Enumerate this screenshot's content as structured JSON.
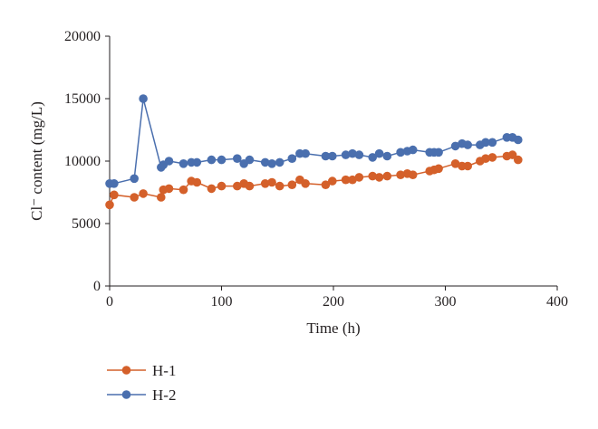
{
  "chart_data": {
    "type": "line",
    "title": "",
    "xlabel": "Time (h)",
    "ylabel": "Cl⁻ content (mg/L)",
    "xlim": [
      0,
      400
    ],
    "ylim": [
      0,
      20000
    ],
    "xticks": [
      "0",
      "100",
      "200",
      "300",
      "400"
    ],
    "yticks": [
      "0",
      "5000",
      "10000",
      "15000",
      "20000"
    ],
    "grid": false,
    "legend_position": "bottom-left",
    "series": [
      {
        "name": "H-1",
        "color": "#d4602a",
        "x": [
          0,
          4,
          22,
          30,
          46,
          48,
          53,
          66,
          73,
          78,
          91,
          100,
          114,
          120,
          125,
          139,
          145,
          152,
          163,
          170,
          175,
          193,
          199,
          211,
          217,
          223,
          235,
          241,
          248,
          260,
          266,
          271,
          286,
          290,
          294,
          309,
          315,
          320,
          331,
          336,
          342,
          355,
          360,
          365
        ],
        "y": [
          6500,
          7300,
          7100,
          7400,
          7100,
          7700,
          7800,
          7700,
          8400,
          8300,
          7800,
          8000,
          8000,
          8200,
          8000,
          8200,
          8300,
          8000,
          8100,
          8500,
          8200,
          8100,
          8400,
          8500,
          8500,
          8700,
          8800,
          8700,
          8800,
          8900,
          9000,
          8900,
          9200,
          9300,
          9400,
          9800,
          9600,
          9600,
          10000,
          10200,
          10300,
          10400,
          10500,
          10100
        ]
      },
      {
        "name": "H-2",
        "color": "#4a6fae",
        "x": [
          0,
          4,
          22,
          30,
          46,
          48,
          53,
          66,
          73,
          78,
          91,
          100,
          114,
          120,
          125,
          139,
          145,
          152,
          163,
          170,
          175,
          193,
          199,
          211,
          217,
          223,
          235,
          241,
          248,
          260,
          266,
          271,
          286,
          290,
          294,
          309,
          315,
          320,
          331,
          336,
          342,
          355,
          360,
          365
        ],
        "y": [
          8200,
          8200,
          8600,
          15000,
          9500,
          9700,
          10000,
          9800,
          9900,
          9900,
          10100,
          10100,
          10200,
          9800,
          10100,
          9900,
          9800,
          9900,
          10200,
          10600,
          10600,
          10400,
          10400,
          10500,
          10600,
          10500,
          10300,
          10600,
          10400,
          10700,
          10800,
          10900,
          10700,
          10700,
          10700,
          11200,
          11400,
          11300,
          11300,
          11500,
          11500,
          11900,
          11900,
          11700
        ]
      }
    ]
  }
}
